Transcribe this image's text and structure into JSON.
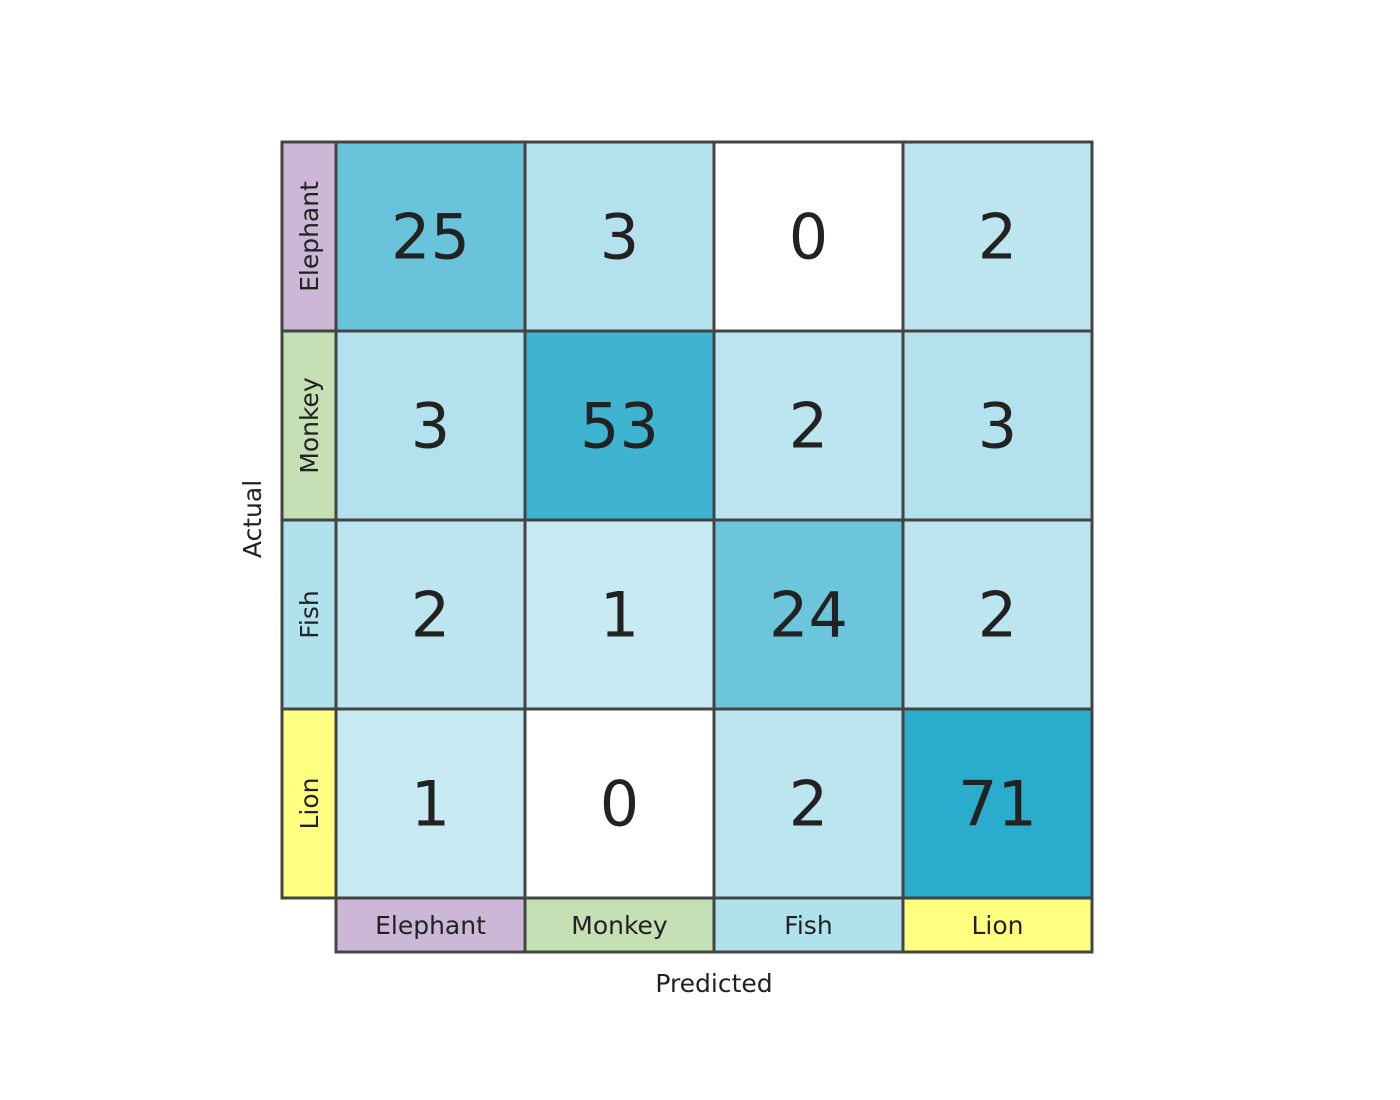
{
  "chart_data": {
    "type": "heatmap",
    "title": "",
    "xlabel": "Predicted",
    "ylabel": "Actual",
    "x_categories": [
      "Elephant",
      "Monkey",
      "Fish",
      "Lion"
    ],
    "y_categories": [
      "Elephant",
      "Monkey",
      "Fish",
      "Lion"
    ],
    "values": [
      [
        25,
        3,
        0,
        2
      ],
      [
        3,
        53,
        2,
        3
      ],
      [
        2,
        1,
        24,
        2
      ],
      [
        1,
        0,
        2,
        71
      ]
    ],
    "category_colors": [
      "#ccb8d6",
      "#c5e0b4",
      "#b0e2ee",
      "#ffff80"
    ],
    "heat_color": "#2aaccc",
    "border_color": "#444444"
  }
}
